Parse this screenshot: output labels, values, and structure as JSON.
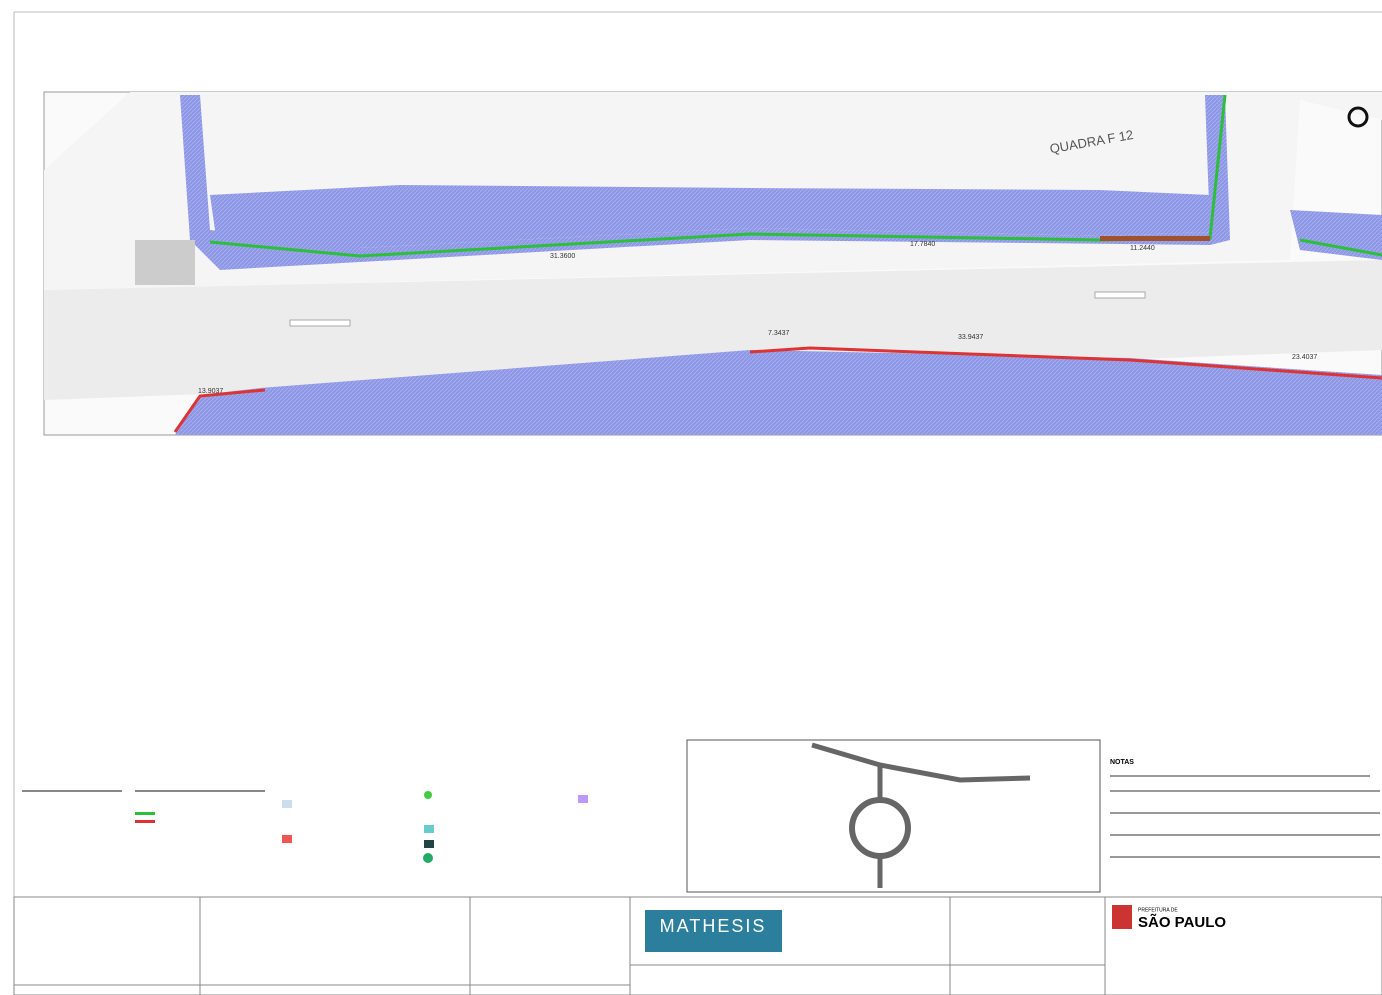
{
  "plan": {
    "block_label": "QUADRA F 12",
    "dimensions": {
      "top": [
        "31.3600",
        "17.7840",
        "11.2440"
      ],
      "bottom": [
        "13.9037",
        "7.3437",
        "33.9437",
        "23.4037"
      ]
    }
  },
  "notes": {
    "title": "NOTAS"
  },
  "title_block": {
    "company": "MATHESIS",
    "city": "SÃO PAULO",
    "city_prefix": "PREFEITURA DE"
  }
}
